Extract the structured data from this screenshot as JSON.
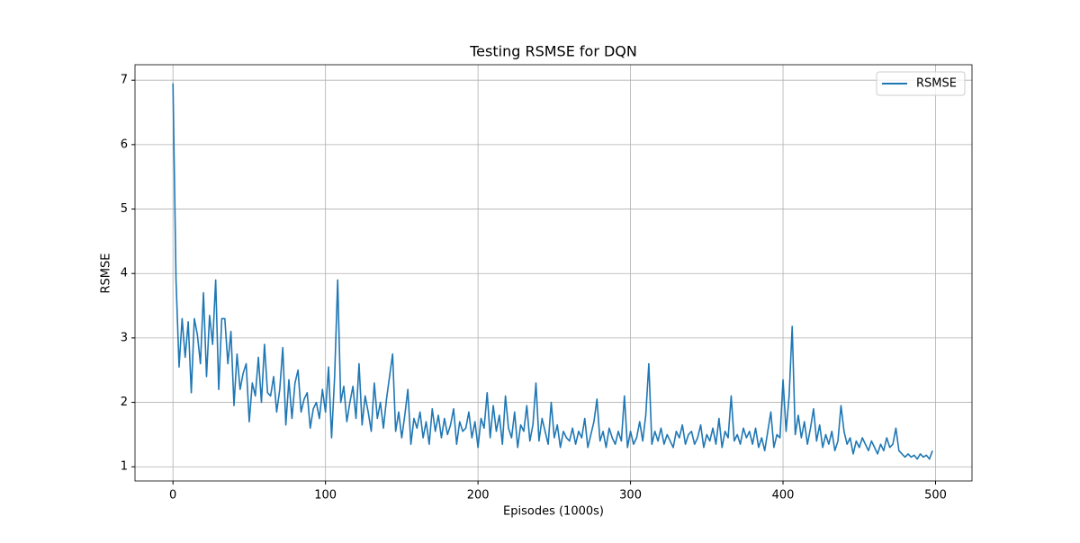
{
  "chart_data": {
    "type": "line",
    "title": "Testing RSMSE for DQN",
    "xlabel": "Episodes (1000s)",
    "ylabel": "RSMSE",
    "x": [
      0,
      2,
      4,
      6,
      8,
      10,
      12,
      14,
      16,
      18,
      20,
      22,
      24,
      26,
      28,
      30,
      32,
      34,
      36,
      38,
      40,
      42,
      44,
      46,
      48,
      50,
      52,
      54,
      56,
      58,
      60,
      62,
      64,
      66,
      68,
      70,
      72,
      74,
      76,
      78,
      80,
      82,
      84,
      86,
      88,
      90,
      92,
      94,
      96,
      98,
      100,
      102,
      104,
      106,
      108,
      110,
      112,
      114,
      116,
      118,
      120,
      122,
      124,
      126,
      128,
      130,
      132,
      134,
      136,
      138,
      140,
      142,
      144,
      146,
      148,
      150,
      152,
      154,
      156,
      158,
      160,
      162,
      164,
      166,
      168,
      170,
      172,
      174,
      176,
      178,
      180,
      182,
      184,
      186,
      188,
      190,
      192,
      194,
      196,
      198,
      200,
      202,
      204,
      206,
      208,
      210,
      212,
      214,
      216,
      218,
      220,
      222,
      224,
      226,
      228,
      230,
      232,
      234,
      236,
      238,
      240,
      242,
      244,
      246,
      248,
      250,
      252,
      254,
      256,
      258,
      260,
      262,
      264,
      266,
      268,
      270,
      272,
      274,
      276,
      278,
      280,
      282,
      284,
      286,
      288,
      290,
      292,
      294,
      296,
      298,
      300,
      302,
      304,
      306,
      308,
      310,
      312,
      314,
      316,
      318,
      320,
      322,
      324,
      326,
      328,
      330,
      332,
      334,
      336,
      338,
      340,
      342,
      344,
      346,
      348,
      350,
      352,
      354,
      356,
      358,
      360,
      362,
      364,
      366,
      368,
      370,
      372,
      374,
      376,
      378,
      380,
      382,
      384,
      386,
      388,
      390,
      392,
      394,
      396,
      398,
      400,
      402,
      404,
      406,
      408,
      410,
      412,
      414,
      416,
      418,
      420,
      422,
      424,
      426,
      428,
      430,
      432,
      434,
      436,
      438,
      440,
      442,
      444,
      446,
      448,
      450,
      452,
      454,
      456,
      458,
      460,
      462,
      464,
      466,
      468,
      470,
      472,
      474,
      476,
      478,
      480,
      482,
      484,
      486,
      488,
      490,
      492,
      494,
      496,
      498
    ],
    "series": [
      {
        "name": "RSMSE",
        "color": "#1f77b4",
        "values": [
          6.95,
          3.9,
          2.55,
          3.3,
          2.7,
          3.25,
          2.15,
          3.3,
          3.05,
          2.6,
          3.7,
          2.4,
          3.35,
          2.9,
          3.9,
          2.2,
          3.3,
          3.3,
          2.6,
          3.1,
          1.95,
          2.75,
          2.2,
          2.45,
          2.6,
          1.7,
          2.3,
          2.1,
          2.7,
          2.0,
          2.9,
          2.15,
          2.1,
          2.4,
          1.85,
          2.2,
          2.85,
          1.65,
          2.35,
          1.75,
          2.3,
          2.5,
          1.85,
          2.05,
          2.15,
          1.6,
          1.9,
          2.0,
          1.75,
          2.2,
          1.85,
          2.55,
          1.45,
          2.4,
          3.9,
          2.0,
          2.25,
          1.7,
          2.0,
          2.25,
          1.75,
          2.6,
          1.65,
          2.1,
          1.85,
          1.55,
          2.3,
          1.75,
          2.0,
          1.6,
          2.05,
          2.4,
          2.75,
          1.55,
          1.85,
          1.45,
          1.8,
          2.2,
          1.35,
          1.75,
          1.6,
          1.85,
          1.45,
          1.7,
          1.35,
          1.9,
          1.55,
          1.8,
          1.45,
          1.75,
          1.5,
          1.65,
          1.9,
          1.35,
          1.7,
          1.55,
          1.6,
          1.85,
          1.45,
          1.7,
          1.3,
          1.75,
          1.6,
          2.15,
          1.45,
          1.95,
          1.55,
          1.8,
          1.35,
          2.1,
          1.6,
          1.45,
          1.85,
          1.3,
          1.65,
          1.55,
          1.95,
          1.4,
          1.65,
          2.3,
          1.4,
          1.75,
          1.55,
          1.35,
          2.0,
          1.45,
          1.65,
          1.3,
          1.55,
          1.45,
          1.4,
          1.6,
          1.35,
          1.55,
          1.45,
          1.75,
          1.3,
          1.5,
          1.7,
          2.05,
          1.4,
          1.55,
          1.3,
          1.6,
          1.45,
          1.35,
          1.55,
          1.4,
          2.1,
          1.3,
          1.55,
          1.35,
          1.45,
          1.7,
          1.4,
          1.8,
          2.6,
          1.35,
          1.55,
          1.4,
          1.6,
          1.35,
          1.5,
          1.4,
          1.3,
          1.55,
          1.45,
          1.65,
          1.35,
          1.5,
          1.55,
          1.35,
          1.45,
          1.65,
          1.3,
          1.5,
          1.4,
          1.6,
          1.35,
          1.75,
          1.3,
          1.55,
          1.45,
          2.1,
          1.4,
          1.5,
          1.35,
          1.6,
          1.45,
          1.55,
          1.35,
          1.6,
          1.3,
          1.45,
          1.25,
          1.55,
          1.85,
          1.3,
          1.5,
          1.45,
          2.35,
          1.55,
          2.1,
          3.18,
          1.5,
          1.8,
          1.45,
          1.7,
          1.35,
          1.6,
          1.9,
          1.4,
          1.65,
          1.3,
          1.5,
          1.35,
          1.55,
          1.25,
          1.4,
          1.95,
          1.55,
          1.35,
          1.45,
          1.2,
          1.4,
          1.3,
          1.45,
          1.35,
          1.25,
          1.4,
          1.3,
          1.2,
          1.35,
          1.25,
          1.45,
          1.3,
          1.35,
          1.6,
          1.25,
          1.2,
          1.15,
          1.2,
          1.15,
          1.18,
          1.12,
          1.2,
          1.15,
          1.18,
          1.12,
          1.25
        ]
      }
    ],
    "xlim": [
      -24.9,
      523.9
    ],
    "ylim": [
      0.78,
      7.24
    ],
    "xticks": [
      0,
      100,
      200,
      300,
      400,
      500
    ],
    "yticks": [
      1,
      2,
      3,
      4,
      5,
      6,
      7
    ],
    "grid": true,
    "legend": "upper right"
  }
}
